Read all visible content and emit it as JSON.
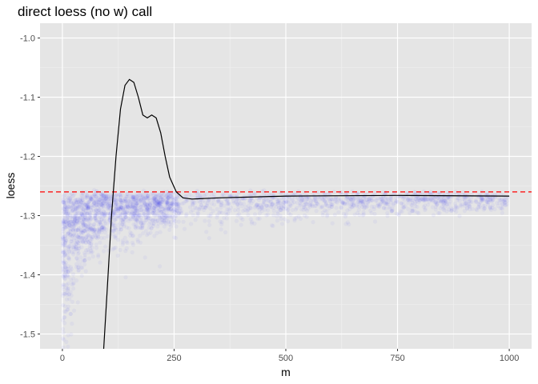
{
  "chart_data": {
    "type": "scatter",
    "title": "direct loess (no w) call",
    "xlabel": "m",
    "ylabel": "loess",
    "xlim": [
      -50,
      1050
    ],
    "ylim": [
      -1.525,
      -0.975
    ],
    "x_ticks": [
      0,
      250,
      500,
      750,
      1000
    ],
    "x_tick_labels": [
      "0",
      "250",
      "500",
      "750",
      "1000"
    ],
    "y_ticks": [
      -1.5,
      -1.4,
      -1.3,
      -1.2,
      -1.1,
      -1.0
    ],
    "y_tick_labels": [
      "-1.5",
      "-1.4",
      "-1.3",
      "-1.2",
      "-1.1",
      "-1.0"
    ],
    "grid": true,
    "background": "#e5e5e5",
    "point_color": "#0000ff",
    "point_alpha": 0.04,
    "point_cloud": {
      "x_range": [
        1,
        1000
      ],
      "asymptote": -1.265,
      "description_of_spread": "wide at small m, narrowing toward asymptote"
    },
    "reference_line": {
      "y": -1.26,
      "color": "#ff0000",
      "style": "dashed"
    },
    "series": [
      {
        "line_color": "#000000",
        "points": [
          [
            92,
            -1.53
          ],
          [
            100,
            -1.43
          ],
          [
            110,
            -1.3
          ],
          [
            120,
            -1.2
          ],
          [
            130,
            -1.12
          ],
          [
            140,
            -1.08
          ],
          [
            150,
            -1.07
          ],
          [
            160,
            -1.075
          ],
          [
            170,
            -1.1
          ],
          [
            180,
            -1.13
          ],
          [
            190,
            -1.135
          ],
          [
            200,
            -1.13
          ],
          [
            210,
            -1.135
          ],
          [
            220,
            -1.16
          ],
          [
            230,
            -1.2
          ],
          [
            240,
            -1.235
          ],
          [
            255,
            -1.26
          ],
          [
            270,
            -1.27
          ],
          [
            290,
            -1.272
          ],
          [
            350,
            -1.27
          ],
          [
            500,
            -1.267
          ],
          [
            750,
            -1.266
          ],
          [
            1000,
            -1.267
          ]
        ]
      }
    ]
  }
}
